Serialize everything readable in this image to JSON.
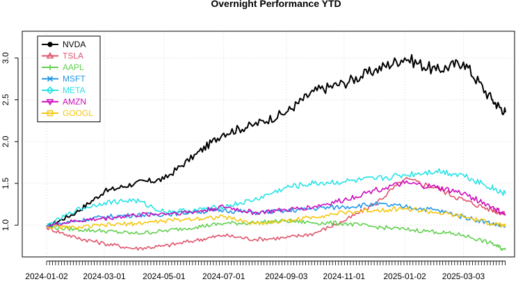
{
  "chart_data": {
    "type": "line",
    "title": "Overnight Performance YTD",
    "xlabel": "",
    "ylabel": "",
    "x_tick_labels": [
      "2024-01-02",
      "2024-03-01",
      "2024-05-01",
      "2024-07-01",
      "2024-09-03",
      "2024-11-01",
      "2025-01-02",
      "2025-03-03"
    ],
    "y_ticks": [
      1.0,
      1.5,
      2.0,
      2.5,
      3.0
    ],
    "y_tick_labels": [
      "1.0",
      "1.5",
      "2.0",
      "2.5",
      "3.0"
    ],
    "ylim": [
      0.62,
      3.32
    ],
    "grid": true,
    "legend_position": "top-left",
    "x": [
      "2024-01-02",
      "2024-02-01",
      "2024-03-01",
      "2024-04-01",
      "2024-05-01",
      "2024-06-03",
      "2024-07-01",
      "2024-08-01",
      "2024-09-03",
      "2024-10-01",
      "2024-11-01",
      "2024-12-02",
      "2025-01-02",
      "2025-02-03",
      "2025-03-03",
      "2025-04-01",
      "2025-04-15"
    ],
    "series": [
      {
        "name": "NVDA",
        "color": "#000000",
        "marker": "circle-filled",
        "values": [
          0.98,
          1.15,
          1.4,
          1.5,
          1.55,
          1.85,
          2.1,
          2.2,
          2.35,
          2.6,
          2.7,
          2.85,
          3.0,
          2.85,
          2.95,
          2.5,
          2.35
        ]
      },
      {
        "name": "TSLA",
        "color": "#DF536B",
        "marker": "triangle-up",
        "values": [
          0.97,
          0.85,
          0.78,
          0.72,
          0.75,
          0.82,
          0.88,
          0.83,
          0.85,
          0.9,
          1.05,
          1.25,
          1.55,
          1.45,
          1.3,
          1.18,
          1.13
        ]
      },
      {
        "name": "AAPL",
        "color": "#61D04F",
        "marker": "plus",
        "values": [
          0.98,
          0.95,
          0.93,
          0.9,
          0.93,
          0.98,
          1.02,
          1.03,
          1.05,
          1.03,
          1.02,
          0.98,
          0.95,
          0.92,
          0.88,
          0.78,
          0.7
        ]
      },
      {
        "name": "MSFT",
        "color": "#2297E6",
        "marker": "cross",
        "values": [
          0.99,
          1.05,
          1.1,
          1.12,
          1.13,
          1.16,
          1.18,
          1.15,
          1.17,
          1.2,
          1.22,
          1.25,
          1.22,
          1.18,
          1.1,
          1.02,
          0.98
        ]
      },
      {
        "name": "META",
        "color": "#28E2E5",
        "marker": "diamond",
        "values": [
          0.99,
          1.18,
          1.27,
          1.3,
          1.16,
          1.18,
          1.22,
          1.3,
          1.45,
          1.5,
          1.52,
          1.55,
          1.6,
          1.65,
          1.6,
          1.45,
          1.37
        ]
      },
      {
        "name": "AMZN",
        "color": "#CD0BBC",
        "marker": "triangle-down",
        "values": [
          0.99,
          1.05,
          1.08,
          1.12,
          1.14,
          1.16,
          1.22,
          1.15,
          1.18,
          1.22,
          1.3,
          1.42,
          1.5,
          1.45,
          1.38,
          1.22,
          1.12
        ]
      },
      {
        "name": "GOOGL",
        "color": "#F5C710",
        "marker": "square",
        "values": [
          0.98,
          0.97,
          1.0,
          1.02,
          1.05,
          1.08,
          1.1,
          1.02,
          1.05,
          1.1,
          1.15,
          1.18,
          1.2,
          1.15,
          1.1,
          1.02,
          0.99
        ]
      }
    ]
  }
}
